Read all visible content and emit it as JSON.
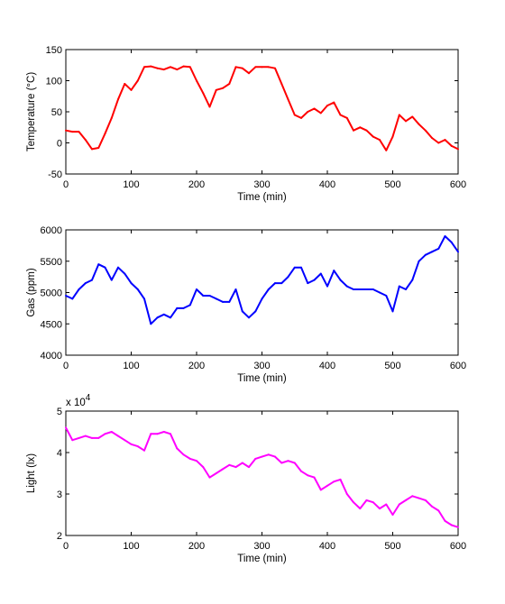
{
  "chart_data": [
    {
      "type": "line",
      "title": "",
      "xlabel": "Time (min)",
      "ylabel": "Temperature (°C)",
      "xlim": [
        0,
        600
      ],
      "ylim": [
        -50,
        150
      ],
      "xticks": [
        0,
        100,
        200,
        300,
        400,
        500,
        600
      ],
      "yticks": [
        -50,
        0,
        50,
        100,
        150
      ],
      "exponent_label": "",
      "grid": false,
      "series": [
        {
          "color": "#ff0000",
          "x": [
            0,
            10,
            20,
            30,
            40,
            50,
            60,
            70,
            80,
            90,
            100,
            110,
            120,
            130,
            140,
            150,
            160,
            170,
            180,
            190,
            200,
            210,
            220,
            230,
            240,
            250,
            260,
            270,
            280,
            290,
            300,
            310,
            320,
            330,
            340,
            350,
            360,
            370,
            380,
            390,
            400,
            410,
            420,
            430,
            440,
            450,
            460,
            470,
            480,
            490,
            500,
            510,
            520,
            530,
            540,
            550,
            560,
            570,
            580,
            590,
            600
          ],
          "values": [
            20,
            18,
            18,
            5,
            -10,
            -8,
            15,
            40,
            70,
            95,
            85,
            100,
            122,
            123,
            120,
            118,
            122,
            118,
            123,
            122,
            100,
            80,
            58,
            85,
            88,
            95,
            122,
            120,
            112,
            122,
            122,
            122,
            120,
            95,
            70,
            45,
            40,
            50,
            55,
            48,
            60,
            65,
            45,
            40,
            20,
            25,
            20,
            10,
            5,
            -12,
            10,
            45,
            35,
            42,
            30,
            20,
            8,
            0,
            5,
            -5,
            -10
          ]
        }
      ]
    },
    {
      "type": "line",
      "title": "",
      "xlabel": "Time (min)",
      "ylabel": "Gas (ppm)",
      "xlim": [
        0,
        600
      ],
      "ylim": [
        4000,
        6000
      ],
      "xticks": [
        0,
        100,
        200,
        300,
        400,
        500,
        600
      ],
      "yticks": [
        4000,
        4500,
        5000,
        5500,
        6000
      ],
      "exponent_label": "",
      "grid": false,
      "series": [
        {
          "color": "#0000ff",
          "x": [
            0,
            10,
            20,
            30,
            40,
            50,
            60,
            70,
            80,
            90,
            100,
            110,
            120,
            130,
            140,
            150,
            160,
            170,
            180,
            190,
            200,
            210,
            220,
            230,
            240,
            250,
            260,
            270,
            280,
            290,
            300,
            310,
            320,
            330,
            340,
            350,
            360,
            370,
            380,
            390,
            400,
            410,
            420,
            430,
            440,
            450,
            460,
            470,
            480,
            490,
            500,
            510,
            520,
            530,
            540,
            550,
            560,
            570,
            580,
            590,
            600
          ],
          "values": [
            4950,
            4900,
            5050,
            5150,
            5200,
            5450,
            5400,
            5200,
            5400,
            5300,
            5150,
            5050,
            4900,
            4500,
            4600,
            4650,
            4600,
            4750,
            4750,
            4800,
            5050,
            4950,
            4950,
            4900,
            4850,
            4850,
            5050,
            4700,
            4600,
            4700,
            4900,
            5050,
            5150,
            5150,
            5250,
            5400,
            5400,
            5150,
            5200,
            5300,
            5100,
            5350,
            5200,
            5100,
            5050,
            5050,
            5050,
            5050,
            5000,
            4950,
            4700,
            5100,
            5050,
            5200,
            5500,
            5600,
            5650,
            5700,
            5900,
            5800,
            5650
          ]
        }
      ]
    },
    {
      "type": "line",
      "title": "",
      "xlabel": "Time (min)",
      "ylabel": "Light (lx)",
      "xlim": [
        0,
        600
      ],
      "ylim": [
        2,
        5
      ],
      "xticks": [
        0,
        100,
        200,
        300,
        400,
        500,
        600
      ],
      "yticks": [
        2,
        3,
        4,
        5
      ],
      "exponent_label": "x 10",
      "exponent_power": "4",
      "grid": false,
      "series": [
        {
          "color": "#ff00ff",
          "x": [
            0,
            10,
            20,
            30,
            40,
            50,
            60,
            70,
            80,
            90,
            100,
            110,
            120,
            130,
            140,
            150,
            160,
            170,
            180,
            190,
            200,
            210,
            220,
            230,
            240,
            250,
            260,
            270,
            280,
            290,
            300,
            310,
            320,
            330,
            340,
            350,
            360,
            370,
            380,
            390,
            400,
            410,
            420,
            430,
            440,
            450,
            460,
            470,
            480,
            490,
            500,
            510,
            520,
            530,
            540,
            550,
            560,
            570,
            580,
            590,
            600
          ],
          "values": [
            4.6,
            4.3,
            4.35,
            4.4,
            4.35,
            4.35,
            4.45,
            4.5,
            4.4,
            4.3,
            4.2,
            4.15,
            4.05,
            4.45,
            4.45,
            4.5,
            4.45,
            4.1,
            3.95,
            3.85,
            3.8,
            3.65,
            3.4,
            3.5,
            3.6,
            3.7,
            3.65,
            3.75,
            3.65,
            3.85,
            3.9,
            3.95,
            3.9,
            3.75,
            3.8,
            3.75,
            3.55,
            3.45,
            3.4,
            3.1,
            3.2,
            3.3,
            3.35,
            3.0,
            2.8,
            2.65,
            2.85,
            2.8,
            2.65,
            2.75,
            2.5,
            2.75,
            2.85,
            2.95,
            2.9,
            2.85,
            2.7,
            2.6,
            2.35,
            2.25,
            2.2
          ]
        }
      ]
    }
  ]
}
